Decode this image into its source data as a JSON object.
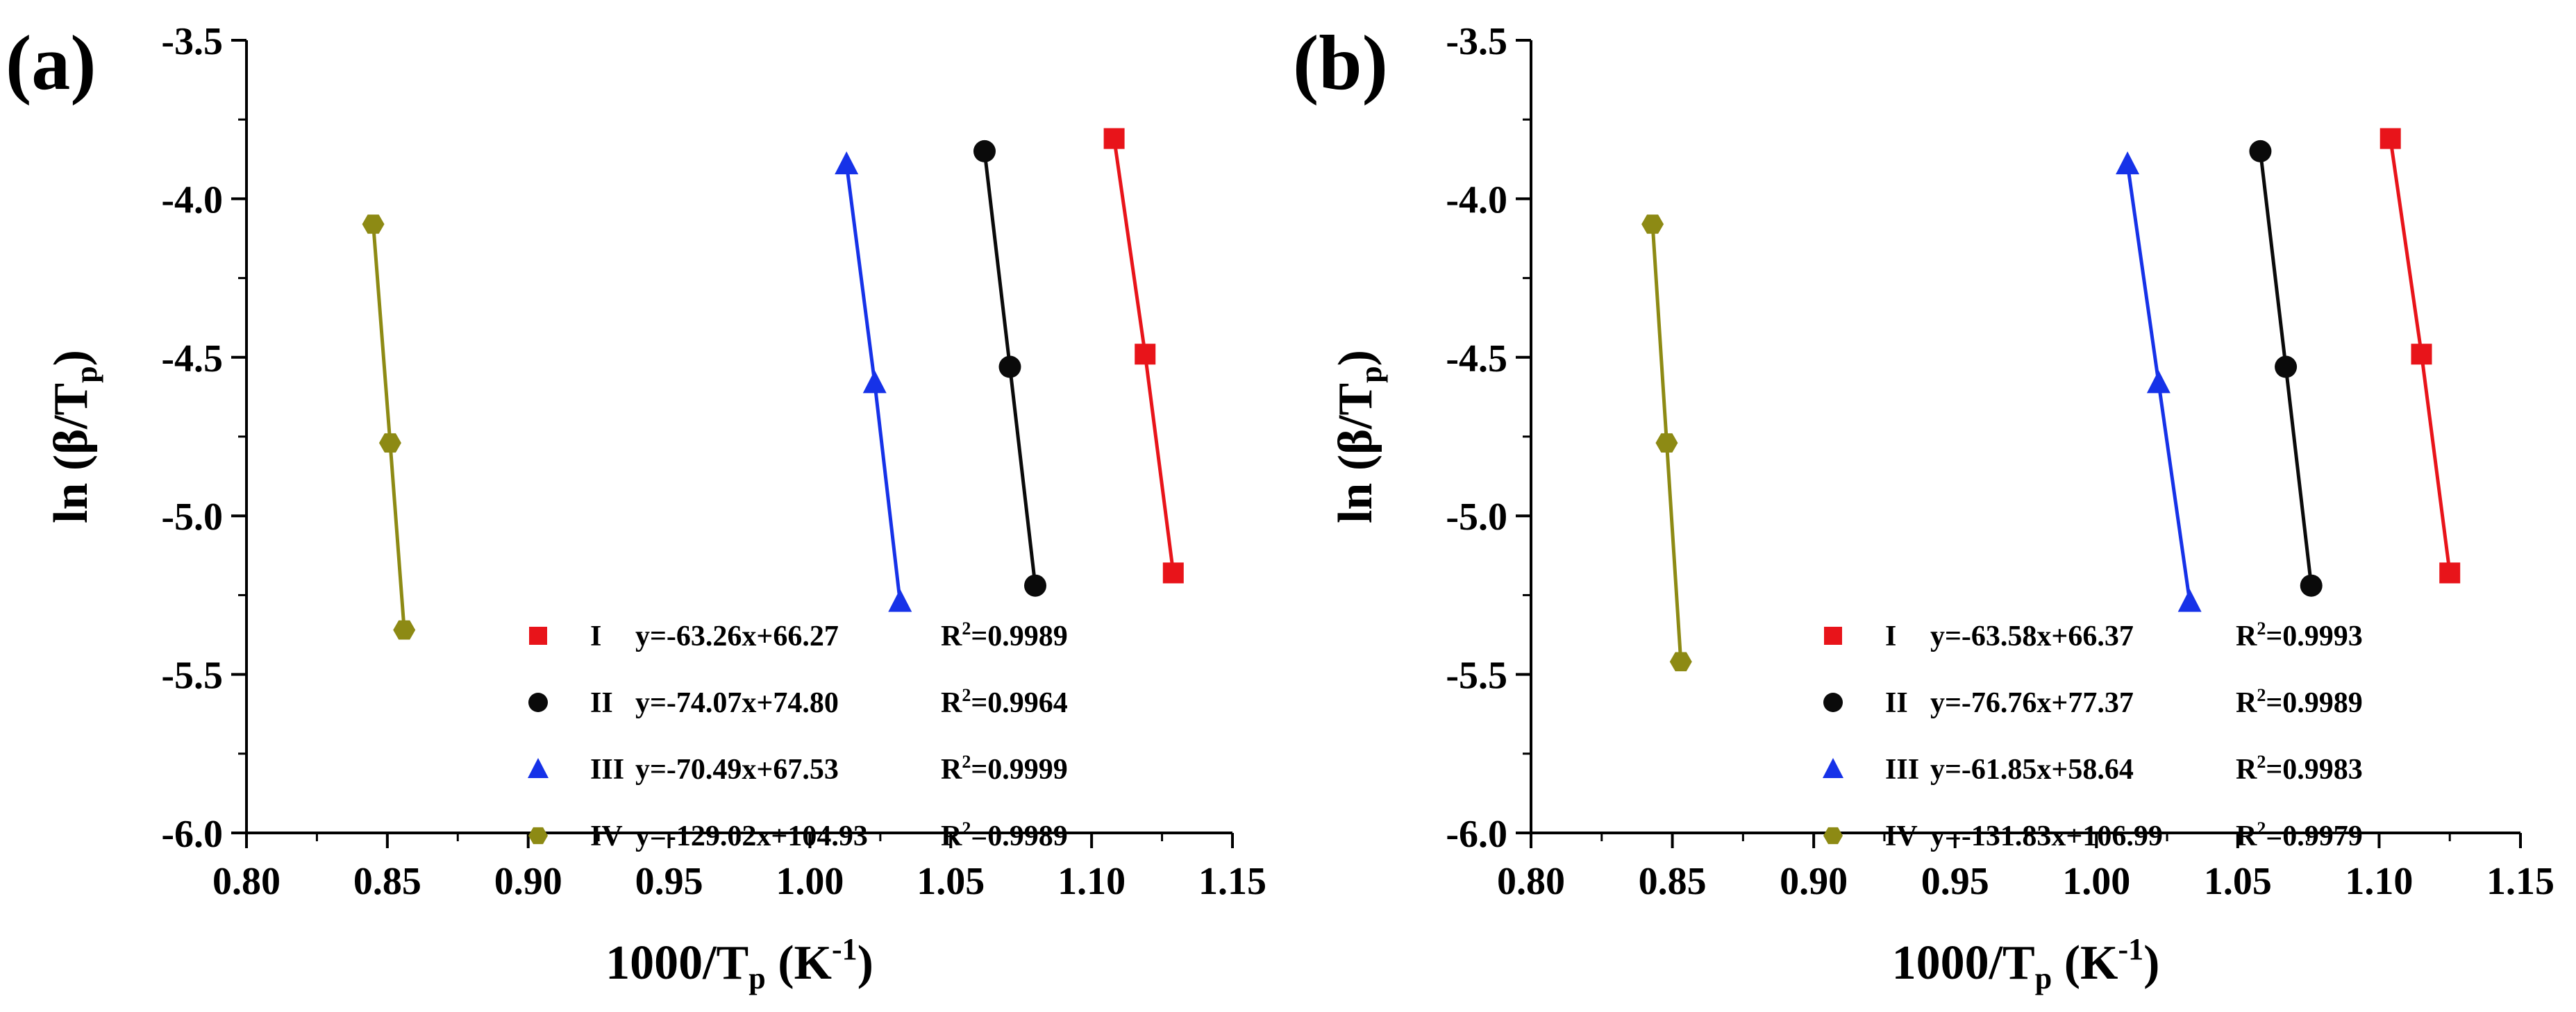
{
  "colors": {
    "I": "#e8141a",
    "II": "#0a0a0a",
    "III": "#1632e8",
    "IV": "#8d8a14",
    "axis": "#000000"
  },
  "chart_data": [
    {
      "type": "scatter",
      "panel_label": "(a)",
      "xlabel": {
        "main": "1000/T",
        "sub": "p",
        "unit": " (K",
        "sup": "-1",
        "close": ")"
      },
      "ylabel": {
        "main": "ln (β/T",
        "sub": "p",
        "close": ")"
      },
      "xlim": [
        0.8,
        1.15
      ],
      "ylim": [
        -6.0,
        -3.5
      ],
      "x_ticks": [
        "0.80",
        "0.85",
        "0.90",
        "0.95",
        "1.00",
        "1.05",
        "1.10",
        "1.15"
      ],
      "y_ticks": [
        "-3.5",
        "-4.0",
        "-4.5",
        "-5.0",
        "-5.5",
        "-6.0"
      ],
      "legend_position": "bottom-center",
      "series": [
        {
          "name": "I",
          "marker": "square",
          "color_key": "I",
          "equation": "y=-63.26x+66.27",
          "r2_label": "R",
          "r2_value": "=0.9989",
          "x": [
            1.108,
            1.119,
            1.129
          ],
          "y": [
            -3.81,
            -4.49,
            -5.18
          ]
        },
        {
          "name": "II",
          "marker": "circle",
          "color_key": "II",
          "equation": "y=-74.07x+74.80",
          "r2_label": "R",
          "r2_value": "=0.9964",
          "x": [
            1.062,
            1.071,
            1.08
          ],
          "y": [
            -3.85,
            -4.53,
            -5.22
          ]
        },
        {
          "name": "III",
          "marker": "triangle",
          "color_key": "III",
          "equation": "y=-70.49x+67.53",
          "r2_label": "R",
          "r2_value": "=0.9999",
          "x": [
            1.013,
            1.023,
            1.032
          ],
          "y": [
            -3.89,
            -4.58,
            -5.27
          ]
        },
        {
          "name": "IV",
          "marker": "hexagon",
          "color_key": "IV",
          "equation": "y=-129.02x+104.93",
          "r2_label": "R",
          "r2_value": "=0.9989",
          "x": [
            0.845,
            0.851,
            0.856
          ],
          "y": [
            -4.08,
            -4.77,
            -5.36
          ]
        }
      ]
    },
    {
      "type": "scatter",
      "panel_label": "(b)",
      "xlabel": {
        "main": "1000/T",
        "sub": "p",
        "unit": " (K",
        "sup": "-1",
        "close": ")"
      },
      "ylabel": {
        "main": "ln (β/T",
        "sub": "p",
        "close": ")"
      },
      "xlim": [
        0.8,
        1.15
      ],
      "ylim": [
        -6.0,
        -3.5
      ],
      "x_ticks": [
        "0.80",
        "0.85",
        "0.90",
        "0.95",
        "1.00",
        "1.05",
        "1.10",
        "1.15"
      ],
      "y_ticks": [
        "-3.5",
        "-4.0",
        "-4.5",
        "-5.0",
        "-5.5",
        "-6.0"
      ],
      "legend_position": "bottom-center",
      "series": [
        {
          "name": "I",
          "marker": "square",
          "color_key": "I",
          "equation": "y=-63.58x+66.37",
          "r2_label": "R",
          "r2_value": "=0.9993",
          "x": [
            1.104,
            1.115,
            1.125
          ],
          "y": [
            -3.81,
            -4.49,
            -5.18
          ]
        },
        {
          "name": "II",
          "marker": "circle",
          "color_key": "II",
          "equation": "y=-76.76x+77.37",
          "r2_label": "R",
          "r2_value": "=0.9989",
          "x": [
            1.058,
            1.067,
            1.076
          ],
          "y": [
            -3.85,
            -4.53,
            -5.22
          ]
        },
        {
          "name": "III",
          "marker": "triangle",
          "color_key": "III",
          "equation": "y=-61.85x+58.64",
          "r2_label": "R",
          "r2_value": "=0.9983",
          "x": [
            1.011,
            1.022,
            1.033
          ],
          "y": [
            -3.89,
            -4.58,
            -5.27
          ]
        },
        {
          "name": "IV",
          "marker": "hexagon",
          "color_key": "IV",
          "equation": "y=-131.83x+106.99",
          "r2_label": "R",
          "r2_value": "=0.9979",
          "x": [
            0.843,
            0.848,
            0.853
          ],
          "y": [
            -4.08,
            -4.77,
            -5.46
          ]
        }
      ]
    }
  ]
}
